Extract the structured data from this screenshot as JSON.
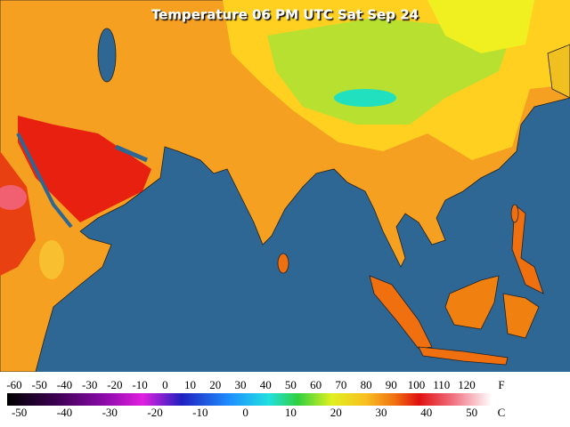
{
  "title": "Temperature 06 PM UTC Sat Sep 24",
  "legend": {
    "fahrenheit": {
      "unit": "F",
      "ticks": [
        -60,
        -50,
        -40,
        -30,
        -20,
        -10,
        0,
        10,
        20,
        30,
        40,
        50,
        60,
        70,
        80,
        90,
        100,
        110,
        120
      ]
    },
    "celsius": {
      "unit": "C",
      "ticks": [
        -50,
        -40,
        -30,
        -20,
        -10,
        0,
        10,
        20,
        30,
        40,
        50
      ]
    }
  }
}
